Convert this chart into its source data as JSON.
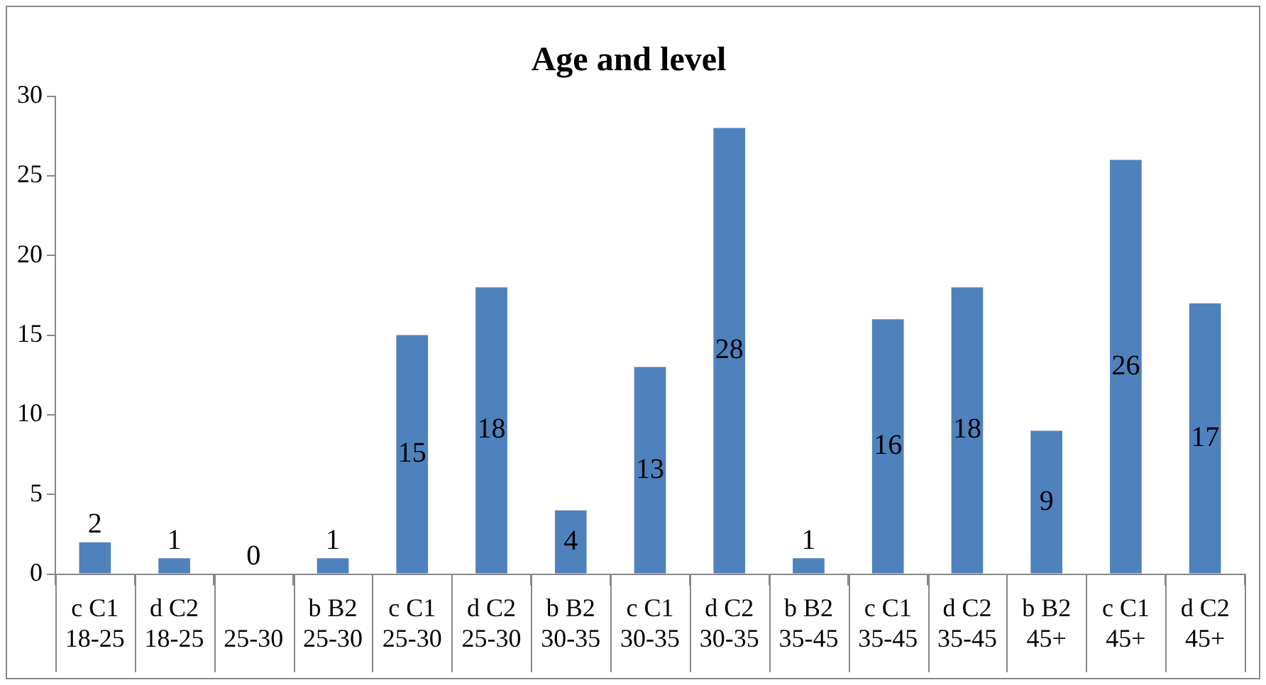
{
  "chart_data": {
    "type": "bar",
    "title": "Age and level",
    "categories": [
      "c C1\n18-25",
      "d C2\n18-25",
      "\n25-30",
      "b B2\n25-30",
      "c C1\n25-30",
      "d C2\n25-30",
      "b B2\n30-35",
      "c C1\n30-35",
      "d C2\n30-35",
      "b B2\n35-45",
      "c C1\n35-45",
      "d C2\n35-45",
      "b B2\n45+",
      "c C1\n45+",
      "d C2\n45+"
    ],
    "values": [
      2,
      1,
      0,
      1,
      15,
      18,
      4,
      13,
      28,
      1,
      16,
      18,
      9,
      26,
      17
    ],
    "color": "#4f81bd",
    "ylim": [
      0,
      30
    ],
    "yticks": [
      0,
      5,
      10,
      15,
      20,
      25,
      30
    ],
    "grid": false,
    "legend": false,
    "data_labels": true
  }
}
